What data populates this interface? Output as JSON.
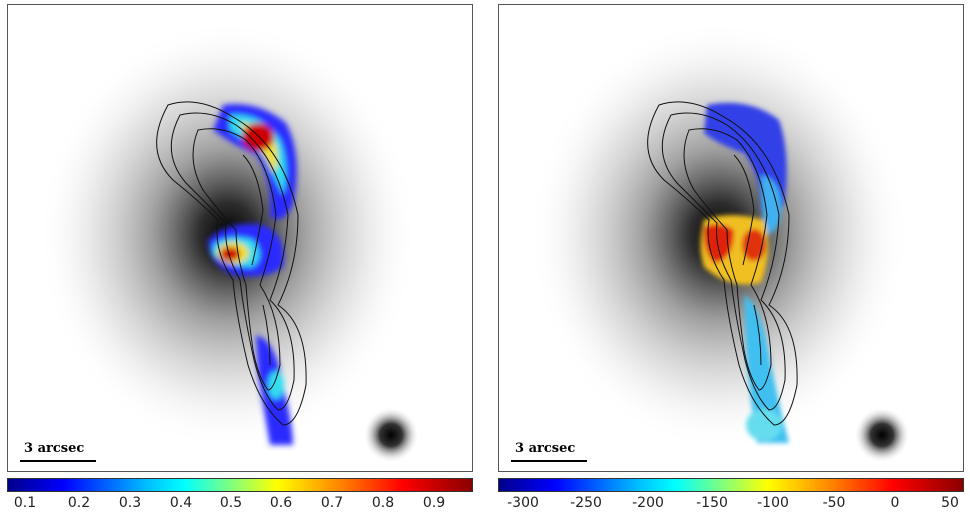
{
  "panels": [
    {
      "scale_label": "3 arcsec",
      "colorbar": {
        "ticks": [
          "0.1",
          "0.2",
          "0.3",
          "0.4",
          "0.5",
          "0.6",
          "0.7",
          "0.8",
          "0.9"
        ],
        "colormap": "jet"
      }
    },
    {
      "scale_label": "3 arcsec",
      "colorbar": {
        "ticks": [
          "-300",
          "-250",
          "-200",
          "-150",
          "-100",
          "-50",
          "0",
          "50"
        ],
        "colormap": "jet"
      }
    }
  ],
  "colors": {
    "jet_blue": "#1a1aff",
    "jet_cyan": "#33ddee",
    "jet_yellow": "#f0e030",
    "jet_red": "#cc0000",
    "contour": "#111111"
  }
}
